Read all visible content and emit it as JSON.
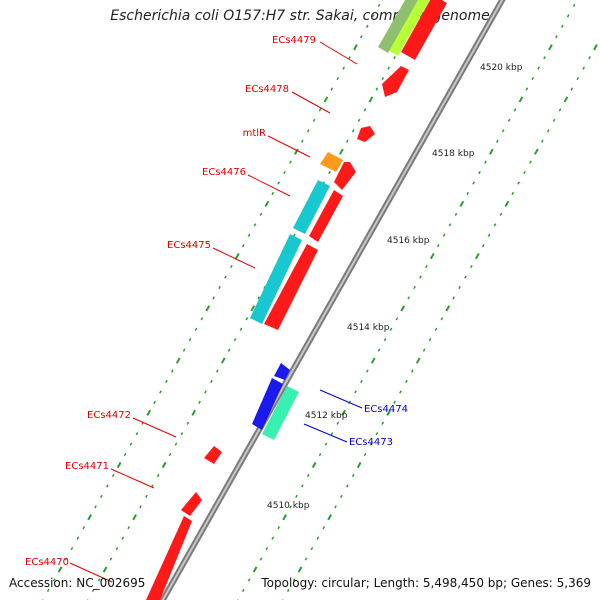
{
  "title": "Escherichia coli O157:H7 str. Sakai, complete genome",
  "accession_text": "Accession: NC_002695",
  "summary_text": "Topology: circular; Length: 5,498,450 bp; Genes: 5,369",
  "colors": {
    "backbone": "#9a9a9a",
    "tick": "#2a9d2a",
    "forward_gene": "#ff1a1a",
    "reverse_gene": "#18c8d0",
    "label_red": "#e00000",
    "label_blue": "#0000cc"
  },
  "scale_labels": [
    {
      "text": "4510 kbp"
    },
    {
      "text": "4512 kbp"
    },
    {
      "text": "4514 kbp"
    },
    {
      "text": "4516 kbp"
    },
    {
      "text": "4518 kbp"
    },
    {
      "text": "4520 kbp"
    }
  ],
  "gene_labels": [
    {
      "text": "ECs4479",
      "color": "red"
    },
    {
      "text": "ECs4478",
      "color": "red"
    },
    {
      "text": "mtlR",
      "color": "red"
    },
    {
      "text": "ECs4476",
      "color": "red"
    },
    {
      "text": "ECs4475",
      "color": "red"
    },
    {
      "text": "ECs4472",
      "color": "red"
    },
    {
      "text": "ECs4471",
      "color": "red"
    },
    {
      "text": "ECs4470",
      "color": "red"
    },
    {
      "text": "ECs4474",
      "color": "blue"
    },
    {
      "text": "ECs4473",
      "color": "blue"
    }
  ]
}
